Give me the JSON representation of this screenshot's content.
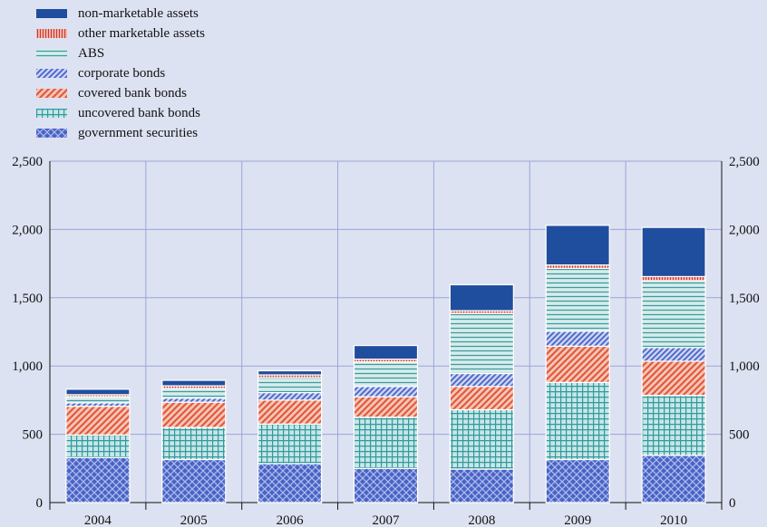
{
  "chart_data": {
    "type": "bar",
    "stacked": true,
    "categories": [
      "2004",
      "2005",
      "2006",
      "2007",
      "2008",
      "2009",
      "2010"
    ],
    "series": [
      {
        "name": "government securities",
        "pattern": "crosshatch",
        "color": "#4a63c4",
        "values": [
          330,
          315,
          285,
          250,
          245,
          315,
          345
        ]
      },
      {
        "name": "uncovered bank bonds",
        "pattern": "grid",
        "color": "#2f9aa0",
        "values": [
          165,
          235,
          290,
          375,
          435,
          565,
          440
        ]
      },
      {
        "name": "covered bank bonds",
        "pattern": "diagonal-red",
        "color": "#e8735a",
        "values": [
          210,
          185,
          175,
          150,
          170,
          265,
          250
        ]
      },
      {
        "name": "corporate bonds",
        "pattern": "diagonal-blue",
        "color": "#5b75d1",
        "values": [
          25,
          30,
          55,
          75,
          95,
          110,
          100
        ]
      },
      {
        "name": "ABS",
        "pattern": "hlines",
        "color": "#3f9c9e",
        "values": [
          45,
          70,
          110,
          180,
          440,
          460,
          490
        ]
      },
      {
        "name": "other marketable assets",
        "pattern": "vlines-red",
        "color": "#d0352b",
        "values": [
          15,
          20,
          20,
          20,
          20,
          25,
          30
        ]
      },
      {
        "name": "non-marketable assets",
        "pattern": "solid",
        "color": "#1f4e9e",
        "values": [
          40,
          40,
          30,
          100,
          190,
          290,
          360
        ]
      }
    ],
    "legend_order": [
      "non-marketable assets",
      "other marketable assets",
      "ABS",
      "corporate bonds",
      "covered bank bonds",
      "uncovered bank bonds",
      "government securities"
    ],
    "ylim": [
      0,
      2500
    ],
    "yticks": [
      "0",
      "500",
      "1,000",
      "1,500",
      "2,000",
      "2,500"
    ],
    "ytick_values": [
      0,
      500,
      1000,
      1500,
      2000,
      2500
    ],
    "grid": true,
    "legend_position": "top-left",
    "title": "",
    "xlabel": "",
    "ylabel": ""
  }
}
